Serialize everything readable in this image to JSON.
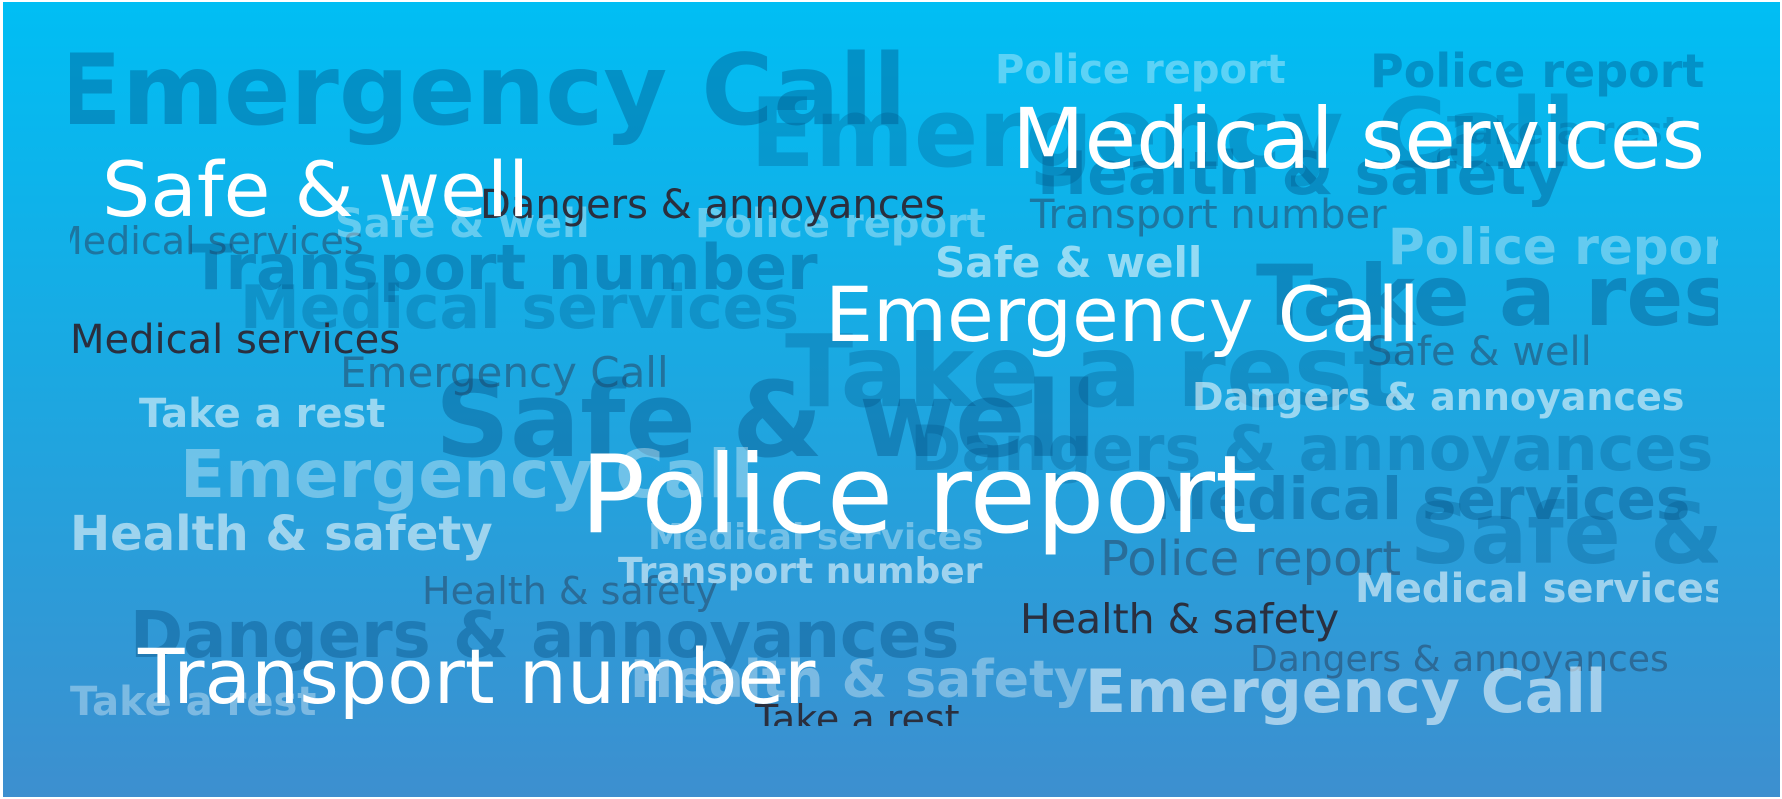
{
  "colors": {
    "top": "#00bef4",
    "bottom": "#3d8fcf",
    "text_white": "#ffffff",
    "text_dark": "#2a2f3e"
  },
  "words": {
    "police_report": "Police report",
    "medical_services": "Medical services",
    "emergency_call": "Emergency Call",
    "safe_and_well": "Safe & well",
    "transport_number": "Transport number",
    "dangers_and_annoyances": "Dangers & annoyances",
    "take_a_rest": "Take a rest",
    "health_and_safety": "Health & safety"
  }
}
